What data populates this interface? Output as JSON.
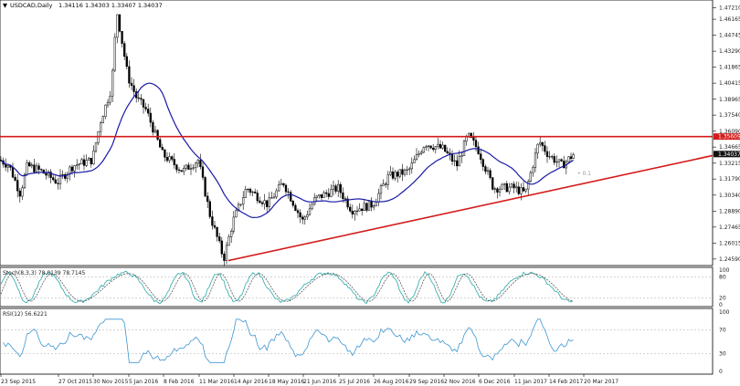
{
  "header": {
    "menu_arrow": "▼",
    "symbol_tf": "USDCAD,Daily",
    "ohlc": "1.34116 1.34303 1.33407 1.34037"
  },
  "price_scale": {
    "labels": [
      "1.47210",
      "1.46165",
      "1.44745",
      "1.43290",
      "1.41865",
      "1.40415",
      "1.38965",
      "1.37540",
      "1.36090",
      "1.34665",
      "1.33215",
      "1.31790",
      "1.30340",
      "1.28890",
      "1.27465",
      "1.26015",
      "1.24590"
    ],
    "resistance_label": "1.35609",
    "current_label": "1.34037",
    "resistance_value": 1.35609,
    "current_value": 1.34037,
    "range": [
      1.2425,
      1.4765
    ]
  },
  "annotation": "• 0.1",
  "stoch": {
    "header": "Stoch(8,3,3) 78.0139 78.7145",
    "levels": [
      "100",
      "80",
      "20",
      "0"
    ]
  },
  "rsi": {
    "header": "RSI(12) 56.6221",
    "levels": [
      "100",
      "70",
      "30",
      "0"
    ]
  },
  "time_axis": {
    "labels": [
      "23 Sep 2015",
      "27 Oct 2015",
      "30 Nov 2015",
      "5 Jan 2016",
      "8 Feb 2016",
      "11 Mar 2016",
      "14 Apr 2016",
      "18 May 2016",
      "21 Jun 2016",
      "25 Jul 2016",
      "26 Aug 2016",
      "29 Sep 2016",
      "2 Nov 2016",
      "6 Dec 2016",
      "11 Jan 2017",
      "14 Feb 2017",
      "20 Mar 2017"
    ]
  },
  "colors": {
    "candle": "#000000",
    "ma": "#1a1aa6",
    "support_resistance": "#d41a1a",
    "stoch_main": "#2aa8a8",
    "stoch_signal": "#444444",
    "rsi": "#3c96d2",
    "current_badge": "#111111"
  },
  "chart_data": {
    "type": "candlestick",
    "title": "USDCAD,Daily",
    "key_points": [
      {
        "x": "23 Sep 2015",
        "close": 1.335
      },
      {
        "x": "27 Oct 2015",
        "close": 1.315
      },
      {
        "x": "30 Nov 2015",
        "close": 1.335
      },
      {
        "x": "5 Jan 2016",
        "close": 1.41
      },
      {
        "x": "20 Jan 2016",
        "high": 1.4689
      },
      {
        "x": "8 Feb 2016",
        "close": 1.39
      },
      {
        "x": "11 Mar 2016",
        "close": 1.335
      },
      {
        "x": "14 Apr 2016",
        "close": 1.28
      },
      {
        "x": "3 May 2016",
        "low": 1.2461
      },
      {
        "x": "18 May 2016",
        "close": 1.31
      },
      {
        "x": "21 Jun 2016",
        "close": 1.28
      },
      {
        "x": "25 Jul 2016",
        "close": 1.31
      },
      {
        "x": "26 Aug 2016",
        "close": 1.295
      },
      {
        "x": "29 Sep 2016",
        "close": 1.325
      },
      {
        "x": "2 Nov 2016",
        "close": 1.345
      },
      {
        "x": "6 Dec 2016",
        "close": 1.345
      },
      {
        "x": "28 Dec 2016",
        "close": 1.35
      },
      {
        "x": "11 Jan 2017",
        "close": 1.31
      },
      {
        "x": "14 Feb 2017",
        "close": 1.31
      },
      {
        "x": "20 Mar 2017",
        "close": 1.335
      },
      {
        "x": "30 Mar 2017",
        "close": 1.34037
      }
    ],
    "horizontal_line": 1.35609,
    "trendline": [
      {
        "x": "3 May 2016",
        "y": 1.2445
      },
      {
        "x": "30 Mar 2017",
        "y": 1.339
      }
    ],
    "ylim": [
      1.2425,
      1.4765
    ]
  }
}
